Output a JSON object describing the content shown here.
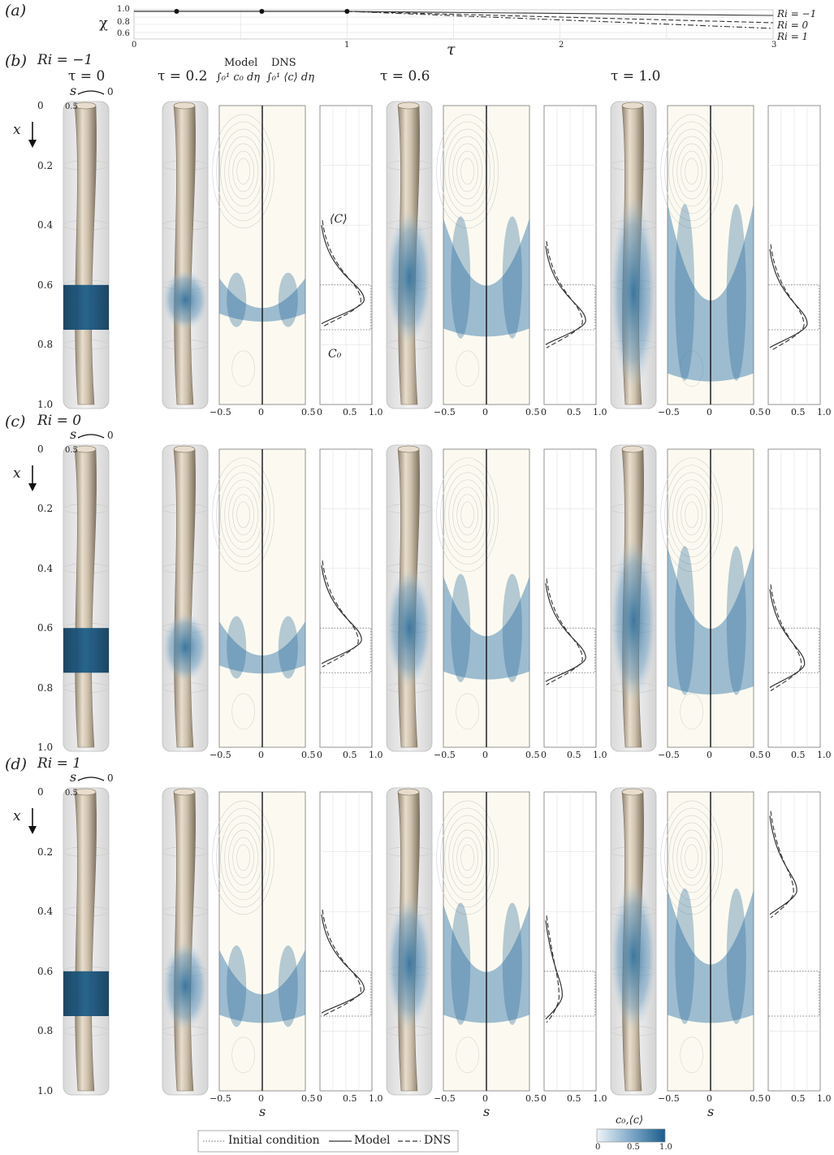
{
  "panel_a": {
    "label": "(a)",
    "ylabel": "χ",
    "xlabel": "τ",
    "yticks": [
      "1.0",
      "0.8",
      "0.6"
    ],
    "xticks": [
      "0",
      "1",
      "2",
      "3"
    ],
    "series_labels": [
      "Ri = −1",
      "Ri = 0",
      "Ri = 1"
    ],
    "markers_tau": [
      0.2,
      0.6,
      1.0
    ]
  },
  "rows": [
    {
      "label": "(b)",
      "ri": "Ri = −1"
    },
    {
      "label": "(c)",
      "ri": "Ri = 0"
    },
    {
      "label": "(d)",
      "ri": "Ri = 1"
    }
  ],
  "times": [
    "τ = 0",
    "τ = 0.2",
    "τ = 0.6",
    "τ = 1.0"
  ],
  "header": {
    "model": "Model",
    "dns": "DNS",
    "model_expr": "∫₀¹ c₀ dη",
    "dns_expr": "∫₀¹ ⟨c⟩ dη",
    "C_label": "⟨C⟩",
    "C0_label": "C₀"
  },
  "axes": {
    "x_label": "x",
    "s_label": "s",
    "x_ticks": [
      "0",
      "0.2",
      "0.4",
      "0.6",
      "0.8",
      "1.0"
    ],
    "s_ticks": [
      "−0.5",
      "0",
      "0.5"
    ],
    "profile_ticks": [
      "0",
      "0.5",
      "1.0"
    ],
    "cyl_s0": "0",
    "cyl_s05": "0.5"
  },
  "legend": {
    "initial": "Initial condition",
    "model": "Model",
    "dns": "DNS"
  },
  "colorbar": {
    "label": "c₀,⟨c⟩",
    "ticks": [
      "0",
      "0.5",
      "1.0"
    ],
    "color_low": "#eef4f8",
    "color_high": "#1b5d8c"
  },
  "colors": {
    "tube": "#cfc2ad",
    "tube_dark": "#8f8270",
    "dye": "#1f5f8b",
    "panel_bg": "#fcfaf0"
  }
}
